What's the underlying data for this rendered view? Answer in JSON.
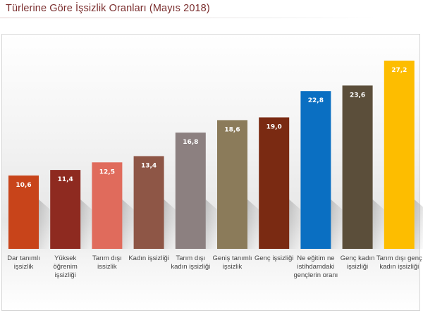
{
  "chart_data": {
    "type": "bar",
    "title": "Türlerine Göre İşsizlik Oranları (Mayıs 2018)",
    "xlabel": "",
    "ylabel": "",
    "ylim": [
      0,
      28
    ],
    "grid": false,
    "legend": "none",
    "categories": [
      "Dar tanımlı işsizlik",
      "Yüksek öğrenim işsizliği",
      "Tarım dışı issizlik",
      "Kadın işsizliği",
      "Tarım dışı kadın işsizliği",
      "Geniş tanımlı işsizlik",
      "Genç işsizliği",
      "Ne eğitim ne istihdamdaki gençlerin oranı",
      "Genç kadın işsizliği",
      "Tarım dışı genç kadın işsizliği"
    ],
    "values": [
      10.6,
      11.4,
      12.5,
      13.4,
      16.8,
      18.6,
      19.0,
      22.8,
      23.6,
      27.2
    ],
    "data_labels": [
      "10,6",
      "11,4",
      "12,5",
      "13,4",
      "16,8",
      "18,6",
      "19,0",
      "22,8",
      "23,6",
      "27,2"
    ],
    "colors": [
      "#c8441a",
      "#8e2a20",
      "#e06b5c",
      "#8e5646",
      "#8c8080",
      "#8b7b5a",
      "#7a2a12",
      "#0a6fc2",
      "#5b4e3a",
      "#fdbd00"
    ]
  }
}
